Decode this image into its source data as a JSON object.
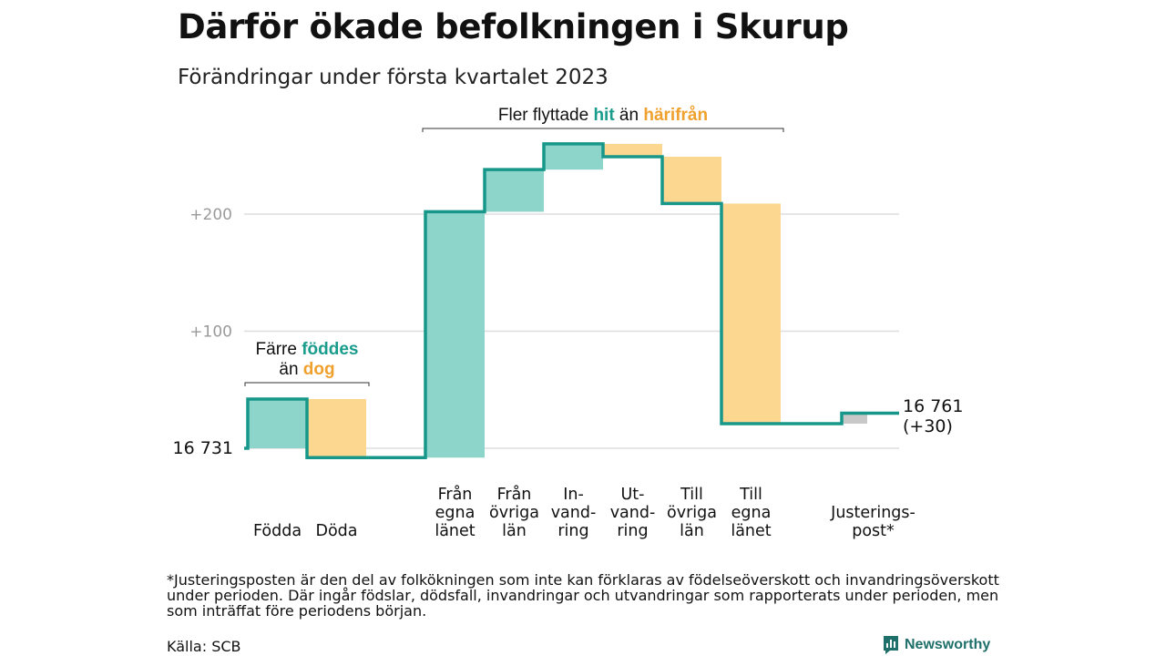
{
  "header": {
    "title": "Därför ökade befolkningen i Skurup",
    "subtitle": "Förändringar under första kvartalet 2023"
  },
  "footer": {
    "footnote": "*Justeringsposten är den del av folkökningen som inte kan förklaras av födelseöverskott och invandringsöverskott under perioden. Där ingår födslar, dödsfall, invandringar och utvandringar som rapporterats under perioden, men som inträffat före periodens början.",
    "source": "Källa: SCB",
    "brand": "Newsworthy"
  },
  "chart_data": {
    "type": "waterfall",
    "start_value": 16731,
    "start_label": "16 731",
    "end_label": [
      "16 761",
      "(+30)"
    ],
    "yticks": [
      {
        "value": 0,
        "label": ""
      },
      {
        "value": 100,
        "label": "+100"
      },
      {
        "value": 200,
        "label": "+200"
      }
    ],
    "ylim": [
      -15,
      270
    ],
    "colors": {
      "in": "#8dd5cb",
      "out": "#fbd78f",
      "adjust": "#c8c8c8",
      "line": "#17978a",
      "grid": "#dddddd",
      "tick": "#9a9a9a",
      "hl_in": "#1a9c8c",
      "hl_out": "#f0a02c"
    },
    "steps": [
      {
        "label": [
          "Födda"
        ],
        "change": 42,
        "kind": "in"
      },
      {
        "label": [
          "Döda"
        ],
        "change": -50,
        "kind": "out"
      },
      {
        "label": [
          ""
        ],
        "change": 0,
        "kind": "gap"
      },
      {
        "label": [
          "Från",
          "egna",
          "länet"
        ],
        "change": 210,
        "kind": "in"
      },
      {
        "label": [
          "Från",
          "övriga",
          "län"
        ],
        "change": 36,
        "kind": "in"
      },
      {
        "label": [
          "In-",
          "vand-",
          "ring"
        ],
        "change": 22,
        "kind": "in"
      },
      {
        "label": [
          "Ut-",
          "vand-",
          "ring"
        ],
        "change": -11,
        "kind": "out"
      },
      {
        "label": [
          "Till",
          "övriga",
          "län"
        ],
        "change": -40,
        "kind": "out"
      },
      {
        "label": [
          "Till",
          "egna",
          "länet"
        ],
        "change": -188,
        "kind": "out"
      },
      {
        "label": [
          ""
        ],
        "change": 0,
        "kind": "gap"
      },
      {
        "label": [
          "Justerings-",
          "post*"
        ],
        "change": 9,
        "kind": "adjust"
      }
    ],
    "annotations": [
      {
        "from": 0,
        "to": 1,
        "lines": [
          [
            {
              "text": "Färre ",
              "kind": "plain"
            },
            {
              "text": "föddes",
              "kind": "in"
            }
          ],
          [
            {
              "text": "än ",
              "kind": "plain"
            },
            {
              "text": "dog",
              "kind": "out"
            }
          ]
        ]
      },
      {
        "from": 3,
        "to": 8,
        "lines": [
          [
            {
              "text": "Fler flyttade ",
              "kind": "plain"
            },
            {
              "text": "hit",
              "kind": "in"
            },
            {
              "text": " än ",
              "kind": "plain"
            },
            {
              "text": "härifrån",
              "kind": "out"
            }
          ]
        ]
      }
    ]
  }
}
